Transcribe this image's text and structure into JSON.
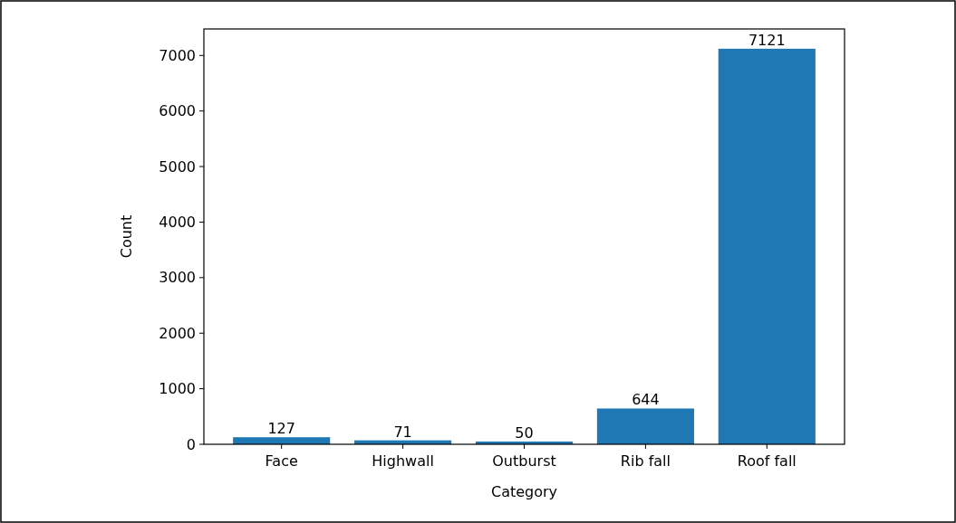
{
  "chart_data": {
    "type": "bar",
    "xlabel": "Category",
    "ylabel": "Count",
    "categories": [
      "Face",
      "Highwall",
      "Outburst",
      "Rib fall",
      "Roof fall"
    ],
    "values": [
      127,
      71,
      50,
      644,
      7121
    ],
    "color": "#1f77b4",
    "data_labels": true,
    "ylim": [
      0,
      7477
    ],
    "yticks": [
      0,
      1000,
      2000,
      3000,
      4000,
      5000,
      6000,
      7000
    ],
    "grid": false
  }
}
